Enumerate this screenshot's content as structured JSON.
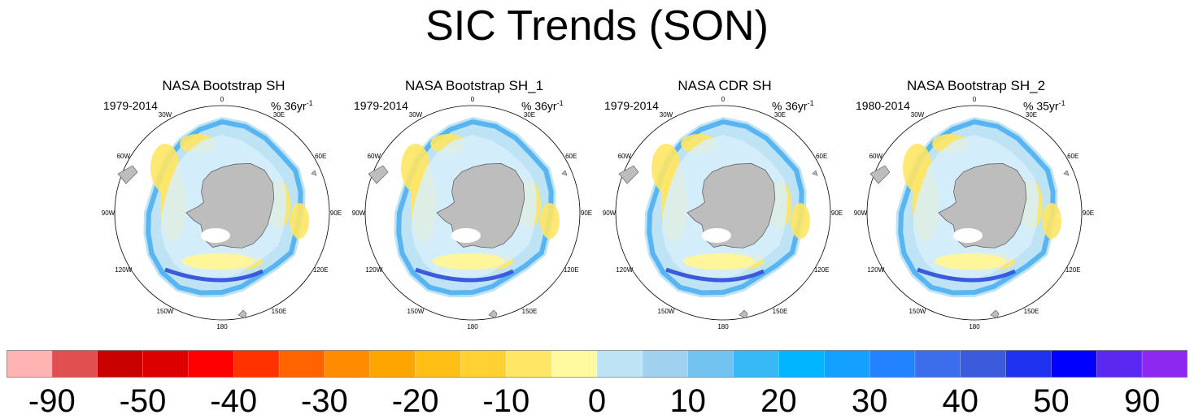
{
  "title": "SIC Trends (SON)",
  "panels": [
    {
      "title": "NASA Bootstrap SH",
      "period": "1979-2014",
      "units": "% 36yr",
      "units_exp": "-1"
    },
    {
      "title": "NASA Bootstrap SH_1",
      "period": "1979-2014",
      "units": "% 36yr",
      "units_exp": "-1"
    },
    {
      "title": "NASA CDR SH",
      "period": "1979-2014",
      "units": "% 36yr",
      "units_exp": "-1"
    },
    {
      "title": "NASA Bootstrap SH_2",
      "period": "1980-2014",
      "units": "% 35yr",
      "units_exp": "-1"
    }
  ],
  "longitude_labels": [
    "0",
    "30E",
    "60E",
    "90E",
    "120E",
    "150E",
    "180",
    "150W",
    "120W",
    "90W",
    "60W",
    "30W"
  ],
  "colorbar": {
    "colors": [
      "#ffb3b3",
      "#e05050",
      "#c80000",
      "#dc0000",
      "#ff0000",
      "#ff3200",
      "#ff6400",
      "#ff8c00",
      "#ffa500",
      "#ffbe14",
      "#ffd232",
      "#ffe664",
      "#fffaa0",
      "#bde3f5",
      "#a0d2f0",
      "#73c3f0",
      "#37b9f5",
      "#00b4ff",
      "#14a0ff",
      "#2382ff",
      "#3c6eeb",
      "#3c5adc",
      "#1e32f0",
      "#0000ff",
      "#5a28f0",
      "#8c28f0"
    ],
    "labels": [
      {
        "text": "-90",
        "boundary": 1
      },
      {
        "text": "-50",
        "boundary": 3
      },
      {
        "text": "-40",
        "boundary": 5
      },
      {
        "text": "-30",
        "boundary": 7
      },
      {
        "text": "-20",
        "boundary": 9
      },
      {
        "text": "-10",
        "boundary": 11
      },
      {
        "text": "0",
        "boundary": 13
      },
      {
        "text": "10",
        "boundary": 15
      },
      {
        "text": "20",
        "boundary": 17
      },
      {
        "text": "30",
        "boundary": 19
      },
      {
        "text": "40",
        "boundary": 21
      },
      {
        "text": "50",
        "boundary": 23
      },
      {
        "text": "90",
        "boundary": 25
      }
    ]
  },
  "palette": {
    "land": "#bdbdbd",
    "ocean_open": "#ffffff",
    "ice_zero": "#fffaa0"
  }
}
